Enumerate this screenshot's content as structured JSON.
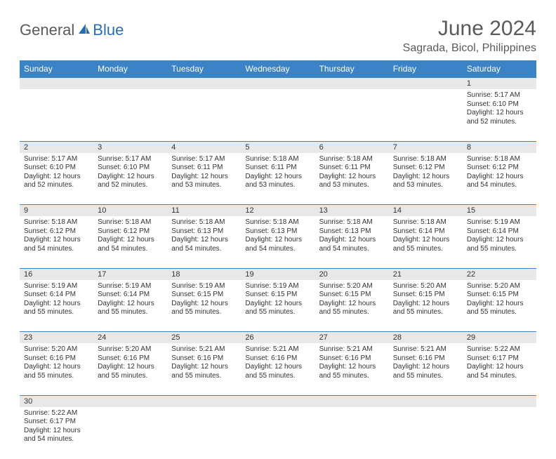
{
  "logo": {
    "general": "General",
    "blue": "Blue"
  },
  "header": {
    "title": "June 2024",
    "location": "Sagrada, Bicol, Philippines"
  },
  "colors": {
    "header_bg": "#3b83c7",
    "header_text": "#ffffff",
    "daynum_bg": "#e8e8e8",
    "border": "#3b83c7",
    "text": "#333333",
    "logo_gray": "#5a5a5a",
    "logo_blue": "#2a6db5"
  },
  "dayNames": [
    "Sunday",
    "Monday",
    "Tuesday",
    "Wednesday",
    "Thursday",
    "Friday",
    "Saturday"
  ],
  "weeks": [
    [
      null,
      null,
      null,
      null,
      null,
      null,
      {
        "n": "1",
        "sr": "5:17 AM",
        "ss": "6:10 PM",
        "dl": "12 hours and 52 minutes."
      }
    ],
    [
      {
        "n": "2",
        "sr": "5:17 AM",
        "ss": "6:10 PM",
        "dl": "12 hours and 52 minutes."
      },
      {
        "n": "3",
        "sr": "5:17 AM",
        "ss": "6:10 PM",
        "dl": "12 hours and 52 minutes."
      },
      {
        "n": "4",
        "sr": "5:17 AM",
        "ss": "6:11 PM",
        "dl": "12 hours and 53 minutes."
      },
      {
        "n": "5",
        "sr": "5:18 AM",
        "ss": "6:11 PM",
        "dl": "12 hours and 53 minutes."
      },
      {
        "n": "6",
        "sr": "5:18 AM",
        "ss": "6:11 PM",
        "dl": "12 hours and 53 minutes."
      },
      {
        "n": "7",
        "sr": "5:18 AM",
        "ss": "6:12 PM",
        "dl": "12 hours and 53 minutes."
      },
      {
        "n": "8",
        "sr": "5:18 AM",
        "ss": "6:12 PM",
        "dl": "12 hours and 54 minutes."
      }
    ],
    [
      {
        "n": "9",
        "sr": "5:18 AM",
        "ss": "6:12 PM",
        "dl": "12 hours and 54 minutes."
      },
      {
        "n": "10",
        "sr": "5:18 AM",
        "ss": "6:12 PM",
        "dl": "12 hours and 54 minutes."
      },
      {
        "n": "11",
        "sr": "5:18 AM",
        "ss": "6:13 PM",
        "dl": "12 hours and 54 minutes."
      },
      {
        "n": "12",
        "sr": "5:18 AM",
        "ss": "6:13 PM",
        "dl": "12 hours and 54 minutes."
      },
      {
        "n": "13",
        "sr": "5:18 AM",
        "ss": "6:13 PM",
        "dl": "12 hours and 54 minutes."
      },
      {
        "n": "14",
        "sr": "5:18 AM",
        "ss": "6:14 PM",
        "dl": "12 hours and 55 minutes."
      },
      {
        "n": "15",
        "sr": "5:19 AM",
        "ss": "6:14 PM",
        "dl": "12 hours and 55 minutes."
      }
    ],
    [
      {
        "n": "16",
        "sr": "5:19 AM",
        "ss": "6:14 PM",
        "dl": "12 hours and 55 minutes."
      },
      {
        "n": "17",
        "sr": "5:19 AM",
        "ss": "6:14 PM",
        "dl": "12 hours and 55 minutes."
      },
      {
        "n": "18",
        "sr": "5:19 AM",
        "ss": "6:15 PM",
        "dl": "12 hours and 55 minutes."
      },
      {
        "n": "19",
        "sr": "5:19 AM",
        "ss": "6:15 PM",
        "dl": "12 hours and 55 minutes."
      },
      {
        "n": "20",
        "sr": "5:20 AM",
        "ss": "6:15 PM",
        "dl": "12 hours and 55 minutes."
      },
      {
        "n": "21",
        "sr": "5:20 AM",
        "ss": "6:15 PM",
        "dl": "12 hours and 55 minutes."
      },
      {
        "n": "22",
        "sr": "5:20 AM",
        "ss": "6:15 PM",
        "dl": "12 hours and 55 minutes."
      }
    ],
    [
      {
        "n": "23",
        "sr": "5:20 AM",
        "ss": "6:16 PM",
        "dl": "12 hours and 55 minutes."
      },
      {
        "n": "24",
        "sr": "5:20 AM",
        "ss": "6:16 PM",
        "dl": "12 hours and 55 minutes."
      },
      {
        "n": "25",
        "sr": "5:21 AM",
        "ss": "6:16 PM",
        "dl": "12 hours and 55 minutes."
      },
      {
        "n": "26",
        "sr": "5:21 AM",
        "ss": "6:16 PM",
        "dl": "12 hours and 55 minutes."
      },
      {
        "n": "27",
        "sr": "5:21 AM",
        "ss": "6:16 PM",
        "dl": "12 hours and 55 minutes."
      },
      {
        "n": "28",
        "sr": "5:21 AM",
        "ss": "6:16 PM",
        "dl": "12 hours and 55 minutes."
      },
      {
        "n": "29",
        "sr": "5:22 AM",
        "ss": "6:17 PM",
        "dl": "12 hours and 54 minutes."
      }
    ],
    [
      {
        "n": "30",
        "sr": "5:22 AM",
        "ss": "6:17 PM",
        "dl": "12 hours and 54 minutes."
      },
      null,
      null,
      null,
      null,
      null,
      null
    ]
  ],
  "labels": {
    "sunrise": "Sunrise:",
    "sunset": "Sunset:",
    "daylight": "Daylight:"
  }
}
